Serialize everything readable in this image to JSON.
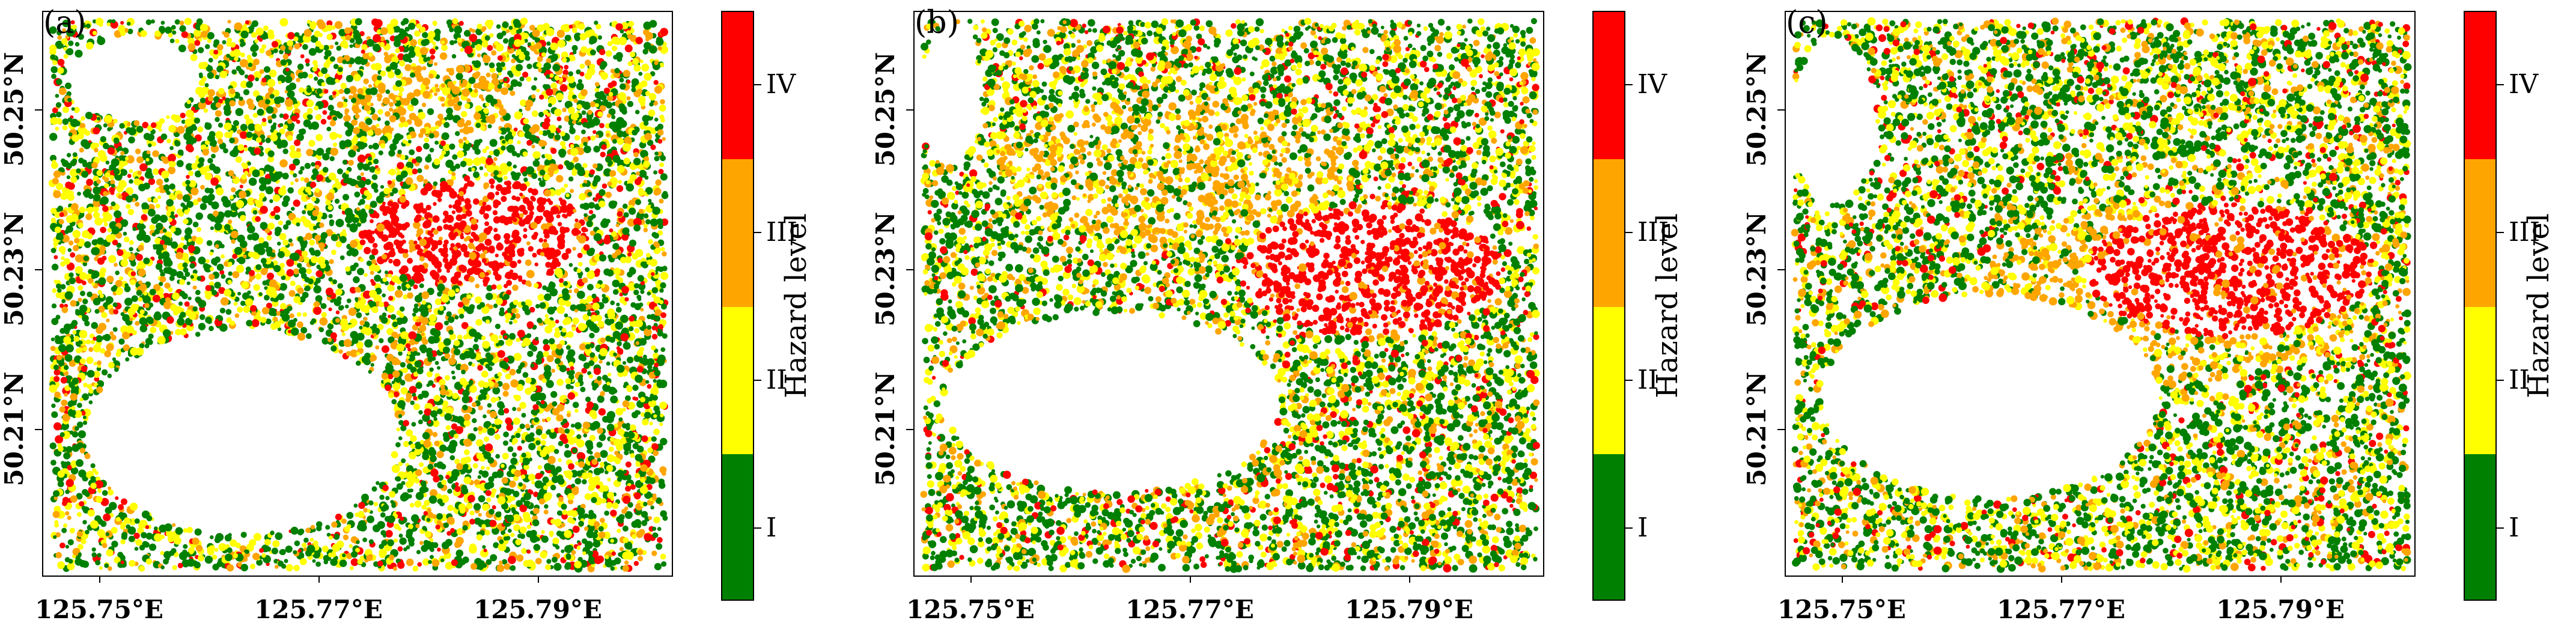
{
  "colorbar": {
    "title": "Hazard level",
    "levels": [
      {
        "label": "IV",
        "color": "#ff0000"
      },
      {
        "label": "III",
        "color": "#ffa500"
      },
      {
        "label": "II",
        "color": "#ffff00"
      },
      {
        "label": "I",
        "color": "#008000"
      }
    ]
  },
  "axes": {
    "x_ticks": [
      "125.75°E",
      "125.77°E",
      "125.79°E"
    ],
    "y_ticks": [
      "50.25°N",
      "50.23°N",
      "50.21°N"
    ]
  },
  "panels": [
    {
      "label": "(a)"
    },
    {
      "label": "(b)"
    },
    {
      "label": "(c)"
    }
  ]
}
